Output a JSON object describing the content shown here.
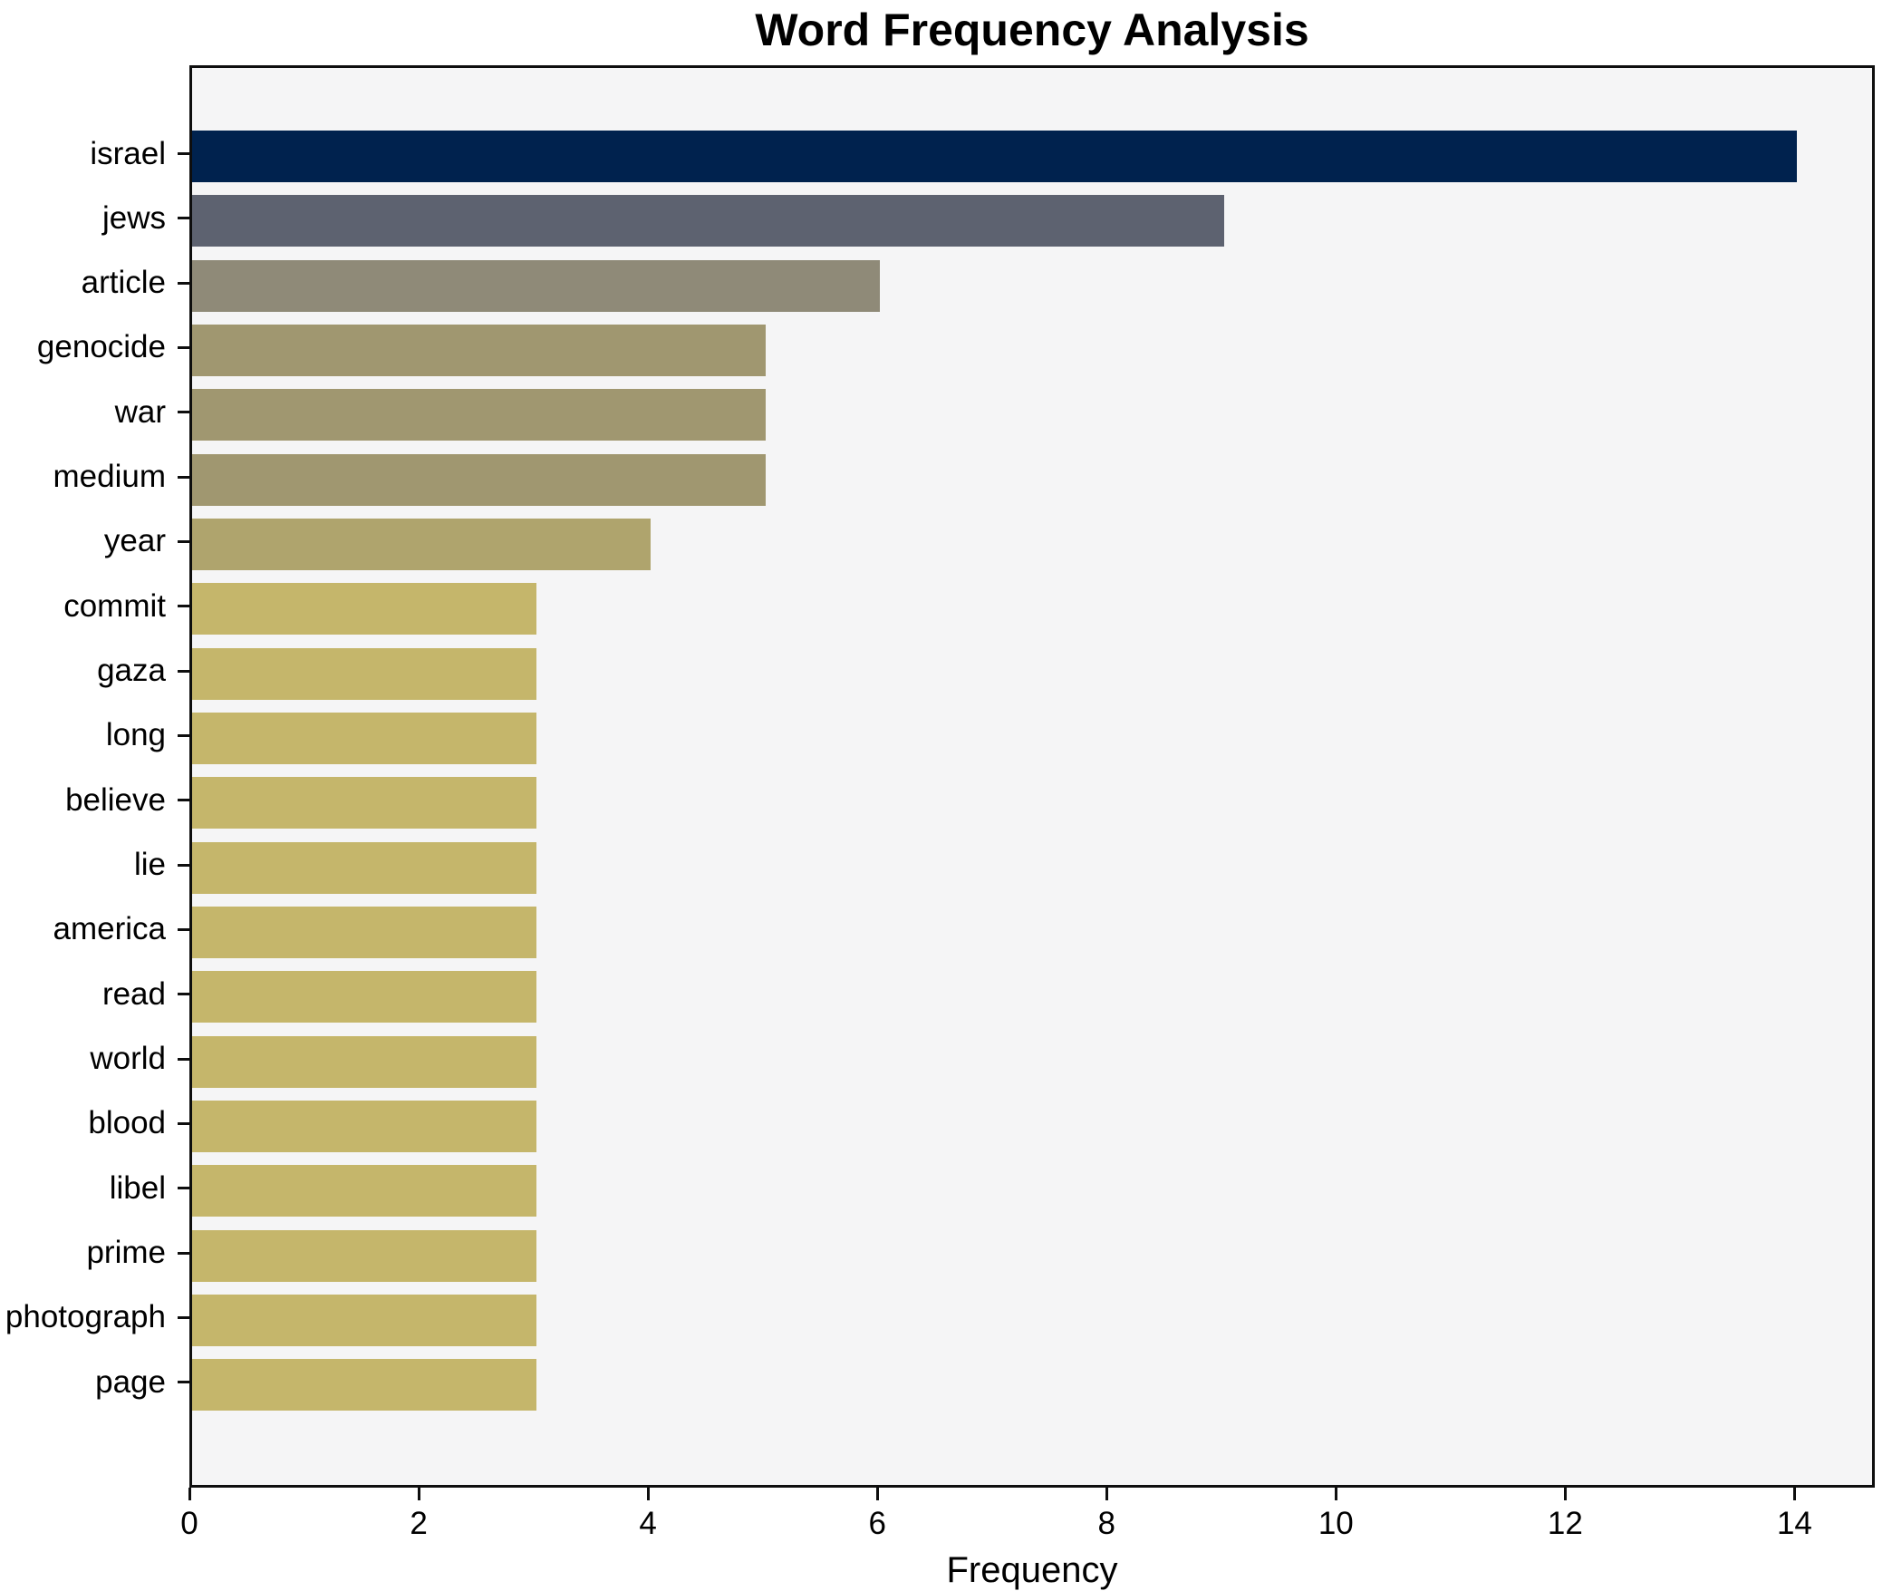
{
  "chart_data": {
    "type": "bar",
    "orientation": "horizontal",
    "title": "Word Frequency Analysis",
    "xlabel": "Frequency",
    "ylabel": "",
    "categories": [
      "israel",
      "jews",
      "article",
      "genocide",
      "war",
      "medium",
      "year",
      "commit",
      "gaza",
      "long",
      "believe",
      "lie",
      "america",
      "read",
      "world",
      "blood",
      "libel",
      "prime",
      "photograph",
      "page"
    ],
    "values": [
      14,
      9,
      6,
      5,
      5,
      5,
      4,
      3,
      3,
      3,
      3,
      3,
      3,
      3,
      3,
      3,
      3,
      3,
      3,
      3
    ],
    "bar_colors": [
      "#00224e",
      "#5d6270",
      "#8f8a78",
      "#a09770",
      "#a09770",
      "#a09770",
      "#afa46d",
      "#c5b66b",
      "#c5b66b",
      "#c5b66b",
      "#c5b66b",
      "#c5b66b",
      "#c5b66b",
      "#c5b66b",
      "#c5b66b",
      "#c5b66b",
      "#c5b66b",
      "#c5b66b",
      "#c5b66b",
      "#c5b66b"
    ],
    "xticks": [
      0,
      2,
      4,
      6,
      8,
      10,
      12,
      14
    ],
    "xlim": [
      0,
      14.7
    ],
    "grid": false,
    "legend": null,
    "plot_background": "#f5f5f6",
    "figure_background": "#ffffff",
    "axis_color": "#0e0e0e",
    "text_color": "#000000"
  }
}
